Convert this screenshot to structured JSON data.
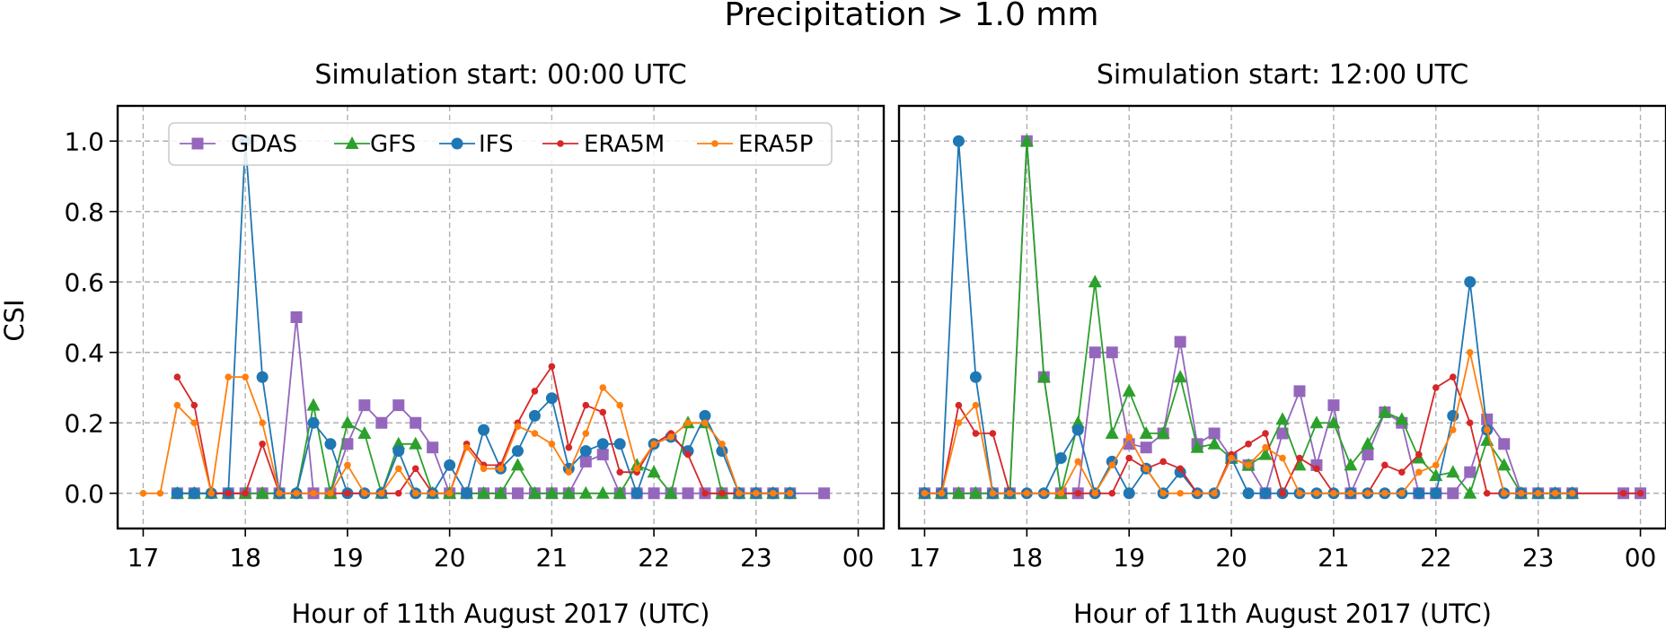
{
  "figure": {
    "suptitle": "Precipitation > 1.0 mm",
    "ylabel": "CSI",
    "xlabel": "Hour of 11th August 2017 (UTC)"
  },
  "chart_data": [
    {
      "type": "line",
      "title": "Simulation start: 00:00 UTC",
      "xlabel": "Hour of 11th August 2017 (UTC)",
      "ylabel": "CSI",
      "xlim": [
        "16:45",
        "24:15"
      ],
      "ylim": [
        -0.1,
        1.1
      ],
      "x_ticks": [
        "17",
        "18",
        "19",
        "20",
        "21",
        "22",
        "23",
        "00"
      ],
      "y_ticks": [
        "0.0",
        "0.2",
        "0.4",
        "0.6",
        "0.8",
        "1.0"
      ],
      "grid": true,
      "legend": "top",
      "series": [
        {
          "name": "GDAS",
          "color": "#9467bd",
          "marker": "square",
          "x": [
            "17:20",
            "17:30",
            "17:50",
            "18:00",
            "18:10",
            "18:20",
            "18:30",
            "18:40",
            "18:50",
            "19:00",
            "19:10",
            "19:20",
            "19:30",
            "19:40",
            "19:50",
            "20:00",
            "20:10",
            "20:20",
            "20:30",
            "20:40",
            "20:50",
            "21:00",
            "21:10",
            "21:20",
            "21:30",
            "21:40",
            "21:50",
            "22:00",
            "22:10",
            "22:20",
            "22:30",
            "22:40",
            "22:50",
            "23:00",
            "23:10",
            "23:20",
            "23:40"
          ],
          "y": [
            0,
            0,
            0,
            0,
            0,
            0,
            0.5,
            0,
            0,
            0.14,
            0.25,
            0.2,
            0.25,
            0.2,
            0.13,
            0,
            0,
            0,
            0,
            0,
            0,
            0,
            0,
            0.09,
            0.11,
            0,
            0,
            0,
            0,
            0,
            0,
            0,
            0,
            0,
            0,
            0,
            0
          ]
        },
        {
          "name": "GFS",
          "color": "#2ca02c",
          "marker": "triangle",
          "x": [
            "17:20",
            "17:30",
            "17:40",
            "17:50",
            "18:00",
            "18:10",
            "18:20",
            "18:30",
            "18:40",
            "18:50",
            "19:00",
            "19:10",
            "19:20",
            "19:30",
            "19:40",
            "19:50",
            "20:00",
            "20:10",
            "20:20",
            "20:30",
            "20:40",
            "20:50",
            "21:00",
            "21:10",
            "21:20",
            "21:30",
            "21:40",
            "21:50",
            "22:00",
            "22:10",
            "22:20",
            "22:30",
            "22:40",
            "22:50",
            "23:00",
            "23:10",
            "23:20"
          ],
          "y": [
            0,
            0,
            0,
            0,
            0,
            0,
            0,
            0,
            0.25,
            0,
            0.2,
            0.17,
            0,
            0.14,
            0.14,
            0,
            0,
            0,
            0,
            0,
            0.08,
            0,
            0,
            0,
            0,
            0,
            0,
            0.08,
            0.06,
            0,
            0.2,
            0.2,
            0,
            0,
            0,
            0,
            0
          ]
        },
        {
          "name": "IFS",
          "color": "#1f77b4",
          "marker": "circle",
          "x": [
            "17:20",
            "17:30",
            "17:40",
            "17:50",
            "18:00",
            "18:10",
            "18:20",
            "18:30",
            "18:40",
            "18:50",
            "19:00",
            "19:10",
            "19:20",
            "19:30",
            "19:40",
            "19:50",
            "20:00",
            "20:10",
            "20:20",
            "20:30",
            "20:40",
            "20:50",
            "21:00",
            "21:10",
            "21:20",
            "21:30",
            "21:40",
            "21:50",
            "22:00",
            "22:10",
            "22:20",
            "22:30",
            "22:40",
            "22:50",
            "23:00",
            "23:10",
            "23:20"
          ],
          "y": [
            0,
            0,
            0,
            0,
            1.0,
            0.33,
            0,
            0,
            0.2,
            0.14,
            0,
            0,
            0,
            0.12,
            0,
            0,
            0.08,
            0,
            0.18,
            0.07,
            0.12,
            0.22,
            0.27,
            0.07,
            0.12,
            0.14,
            0.14,
            0,
            0.14,
            0.16,
            0.12,
            0.22,
            0.12,
            0,
            0,
            0,
            0
          ]
        },
        {
          "name": "ERA5M",
          "color": "#d62728",
          "marker": "dot",
          "x": [
            "17:20",
            "17:30",
            "17:40",
            "17:50",
            "18:00",
            "18:10",
            "18:20",
            "18:30",
            "18:40",
            "18:50",
            "19:00",
            "19:10",
            "19:20",
            "19:30",
            "19:40",
            "19:50",
            "20:00",
            "20:10",
            "20:20",
            "20:30",
            "20:40",
            "20:50",
            "21:00",
            "21:10",
            "21:20",
            "21:30",
            "21:40",
            "21:50",
            "22:00",
            "22:10",
            "22:20",
            "22:30",
            "22:40",
            "22:50",
            "23:00",
            "23:10",
            "23:20"
          ],
          "y": [
            0.33,
            0.25,
            0,
            0,
            0,
            0.14,
            0,
            0,
            0,
            0,
            0,
            0,
            0,
            0,
            0.07,
            0,
            0,
            0.14,
            0.08,
            0.08,
            0.2,
            0.29,
            0.36,
            0.13,
            0.25,
            0.23,
            0.06,
            0.06,
            0.14,
            0.17,
            0.11,
            0,
            0,
            0,
            0,
            0,
            0
          ]
        },
        {
          "name": "ERA5P",
          "color": "#ff7f0e",
          "marker": "dot",
          "x": [
            "17:00",
            "17:10",
            "17:20",
            "17:30",
            "17:40",
            "17:50",
            "18:00",
            "18:10",
            "18:20",
            "18:30",
            "18:40",
            "18:50",
            "19:00",
            "19:10",
            "19:20",
            "19:30",
            "19:40",
            "19:50",
            "20:00",
            "20:10",
            "20:20",
            "20:30",
            "20:40",
            "20:50",
            "21:00",
            "21:10",
            "21:20",
            "21:30",
            "21:40",
            "21:50",
            "22:00",
            "22:10",
            "22:20",
            "22:30",
            "22:40",
            "22:50",
            "23:00",
            "23:10",
            "23:20"
          ],
          "y": [
            0,
            0,
            0.25,
            0.2,
            0,
            0.33,
            0.33,
            0.2,
            0,
            0,
            0,
            0,
            0.08,
            0,
            0,
            0.07,
            0,
            0,
            0,
            0.13,
            0.07,
            0.07,
            0.19,
            0.17,
            0.14,
            0.06,
            0.17,
            0.3,
            0.25,
            0.07,
            0.14,
            0.16,
            0.2,
            0.2,
            0.14,
            0,
            0,
            0,
            0
          ]
        }
      ]
    },
    {
      "type": "line",
      "title": "Simulation start: 12:00 UTC",
      "xlabel": "Hour of 11th August 2017 (UTC)",
      "ylabel": "CSI",
      "xlim": [
        "16:45",
        "24:15"
      ],
      "ylim": [
        -0.1,
        1.1
      ],
      "x_ticks": [
        "17",
        "18",
        "19",
        "20",
        "21",
        "22",
        "23",
        "00"
      ],
      "y_ticks": [
        "0.0",
        "0.2",
        "0.4",
        "0.6",
        "0.8",
        "1.0"
      ],
      "grid": true,
      "series": [
        {
          "name": "GDAS",
          "color": "#9467bd",
          "marker": "square",
          "x": [
            "17:00",
            "17:10",
            "17:20",
            "17:30",
            "17:40",
            "17:50",
            "18:00",
            "18:10",
            "18:20",
            "18:30",
            "18:40",
            "18:50",
            "19:00",
            "19:10",
            "19:20",
            "19:30",
            "19:40",
            "19:50",
            "20:00",
            "20:10",
            "20:20",
            "20:30",
            "20:40",
            "20:50",
            "21:00",
            "21:10",
            "21:20",
            "21:30",
            "21:40",
            "21:50",
            "22:00",
            "22:10",
            "22:20",
            "22:30",
            "22:40",
            "22:50",
            "23:00",
            "23:10",
            "23:20",
            "23:50",
            "24:00"
          ],
          "y": [
            0,
            0,
            0,
            0,
            0,
            0,
            1.0,
            0.33,
            0,
            0,
            0.4,
            0.4,
            0.14,
            0.13,
            0.17,
            0.43,
            0.14,
            0.17,
            0.1,
            0.08,
            0,
            0.17,
            0.29,
            0.08,
            0.25,
            0,
            0.11,
            0.23,
            0.2,
            0,
            0,
            0,
            0.06,
            0.21,
            0.14,
            0,
            0,
            0,
            0,
            0,
            0
          ]
        },
        {
          "name": "GFS",
          "color": "#2ca02c",
          "marker": "triangle",
          "x": [
            "17:00",
            "17:10",
            "17:20",
            "17:30",
            "17:40",
            "17:50",
            "18:00",
            "18:10",
            "18:20",
            "18:30",
            "18:40",
            "18:50",
            "19:00",
            "19:10",
            "19:20",
            "19:30",
            "19:40",
            "19:50",
            "20:00",
            "20:10",
            "20:20",
            "20:30",
            "20:40",
            "20:50",
            "21:00",
            "21:10",
            "21:20",
            "21:30",
            "21:40",
            "21:50",
            "22:00",
            "22:10",
            "22:20",
            "22:30",
            "22:40",
            "22:50",
            "23:00",
            "23:10",
            "23:20"
          ],
          "y": [
            0,
            0,
            0,
            0,
            0,
            0,
            1.0,
            0.33,
            0,
            0.2,
            0.6,
            0.17,
            0.29,
            0.17,
            0.17,
            0.33,
            0.13,
            0.14,
            0.1,
            0.08,
            0.11,
            0.21,
            0.08,
            0.2,
            0.2,
            0.08,
            0.14,
            0.23,
            0.21,
            0.1,
            0.05,
            0.06,
            0,
            0.15,
            0.08,
            0,
            0,
            0,
            0
          ]
        },
        {
          "name": "IFS",
          "color": "#1f77b4",
          "marker": "circle",
          "x": [
            "17:00",
            "17:10",
            "17:20",
            "17:30",
            "17:40",
            "17:50",
            "18:00",
            "18:10",
            "18:20",
            "18:30",
            "18:40",
            "18:50",
            "19:00",
            "19:10",
            "19:20",
            "19:30",
            "19:40",
            "19:50",
            "20:00",
            "20:10",
            "20:20",
            "20:30",
            "20:40",
            "20:50",
            "21:00",
            "21:10",
            "21:20",
            "21:30",
            "21:40",
            "21:50",
            "22:00",
            "22:10",
            "22:20",
            "22:30",
            "22:40",
            "22:50",
            "23:00",
            "23:10",
            "23:20"
          ],
          "y": [
            0,
            0,
            1.0,
            0.33,
            0,
            0,
            0,
            0,
            0.1,
            0.18,
            0,
            0.09,
            0,
            0.07,
            0,
            0.06,
            0,
            0,
            0.1,
            0,
            0,
            0,
            0,
            0,
            0,
            0,
            0,
            0,
            0,
            0,
            0,
            0.22,
            0.6,
            0.18,
            0,
            0,
            0,
            0,
            0
          ]
        },
        {
          "name": "ERA5M",
          "color": "#d62728",
          "marker": "dot",
          "x": [
            "17:00",
            "17:10",
            "17:20",
            "17:30",
            "17:40",
            "17:50",
            "18:00",
            "18:10",
            "18:20",
            "18:30",
            "18:40",
            "18:50",
            "19:00",
            "19:10",
            "19:20",
            "19:30",
            "19:40",
            "19:50",
            "20:00",
            "20:10",
            "20:20",
            "20:30",
            "20:40",
            "20:50",
            "21:00",
            "21:10",
            "21:20",
            "21:30",
            "21:40",
            "21:50",
            "22:00",
            "22:10",
            "22:20",
            "22:30",
            "22:40",
            "22:50",
            "23:00",
            "23:10",
            "23:20",
            "23:50",
            "24:00"
          ],
          "y": [
            0,
            0,
            0.25,
            0.17,
            0.17,
            0,
            0,
            0,
            0,
            0,
            0,
            0,
            0.1,
            0.07,
            0.09,
            0.07,
            0,
            0,
            0.11,
            0.14,
            0.17,
            0,
            0.1,
            0.07,
            0,
            0,
            0,
            0.08,
            0.06,
            0.11,
            0.3,
            0.33,
            0.2,
            0,
            0,
            0,
            0,
            0,
            0,
            0,
            0
          ]
        },
        {
          "name": "ERA5P",
          "color": "#ff7f0e",
          "marker": "dot",
          "x": [
            "17:00",
            "17:10",
            "17:20",
            "17:30",
            "17:40",
            "17:50",
            "18:00",
            "18:10",
            "18:20",
            "18:30",
            "18:40",
            "18:50",
            "19:00",
            "19:10",
            "19:20",
            "19:30",
            "19:40",
            "19:50",
            "20:00",
            "20:10",
            "20:20",
            "20:30",
            "20:40",
            "20:50",
            "21:00",
            "21:10",
            "21:20",
            "21:30",
            "21:40",
            "21:50",
            "22:00",
            "22:10",
            "22:20",
            "22:30",
            "22:40",
            "22:50",
            "23:00",
            "23:10",
            "23:20"
          ],
          "y": [
            0,
            0,
            0.2,
            0.25,
            0,
            0,
            0,
            0,
            0,
            0.09,
            0,
            0.08,
            0.16,
            0.07,
            0,
            0,
            0,
            0,
            0.1,
            0.08,
            0.13,
            0.1,
            0,
            0,
            0,
            0,
            0,
            0,
            0,
            0.06,
            0.08,
            0.18,
            0.4,
            0.18,
            0,
            0,
            0,
            0,
            0
          ]
        }
      ]
    }
  ]
}
